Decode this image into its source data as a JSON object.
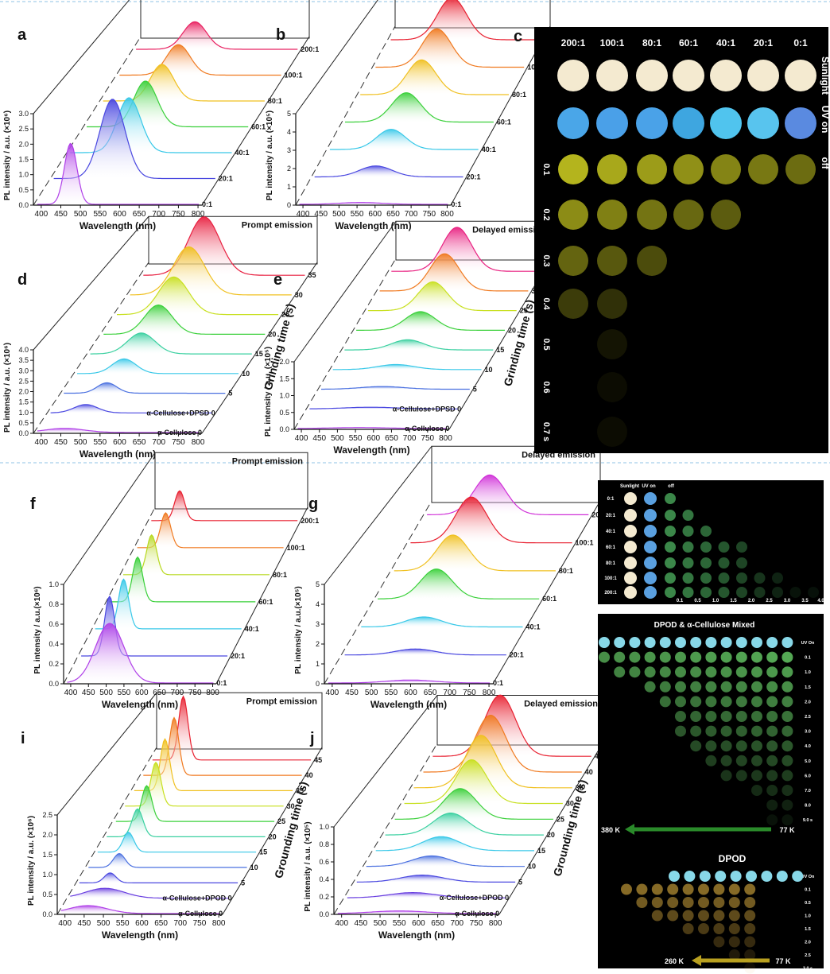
{
  "colors": {
    "series_palette": [
      "#9b30e8",
      "#4b49e0",
      "#38c8e8",
      "#3ad03a",
      "#b8d820",
      "#f0c020",
      "#f07a20",
      "#e82030",
      "#e0208a"
    ],
    "divider": "#8fc3e6",
    "photo_bg": "#000000"
  },
  "panels_3d": [
    {
      "panel": "a",
      "header": "Prompt emission",
      "xlabel": "Wavelength (nm)",
      "ylabel": "PL intensity / a.u. (×10⁶)",
      "xticks": [
        "400",
        "450",
        "500",
        "550",
        "600",
        "650",
        "700",
        "750",
        "800"
      ],
      "yticks": [
        "0.0",
        "0.5",
        "1.0",
        "1.5",
        "2.0",
        "2.5",
        "3.0"
      ],
      "ymax": 3.0,
      "right_label": "",
      "series": [
        {
          "name": "0:1",
          "center": 475,
          "width": 16,
          "peak": 2.0,
          "color": "#b040e8"
        },
        {
          "name": "20:1",
          "center": 540,
          "width": 32,
          "peak": 2.6,
          "color": "#4a48e0"
        },
        {
          "name": "40:1",
          "center": 540,
          "width": 30,
          "peak": 1.8,
          "color": "#38c8e8"
        },
        {
          "name": "60:1",
          "center": 540,
          "width": 30,
          "peak": 1.5,
          "color": "#3ad03a"
        },
        {
          "name": "80:1",
          "center": 540,
          "width": 30,
          "peak": 1.2,
          "color": "#f0c020"
        },
        {
          "name": "100:1",
          "center": 540,
          "width": 30,
          "peak": 1.0,
          "color": "#f07a20"
        },
        {
          "name": "200:1",
          "center": 540,
          "width": 30,
          "peak": 0.9,
          "color": "#e82060"
        }
      ]
    },
    {
      "panel": "b",
      "header": "Delayed emission",
      "xlabel": "Wavelength (nm)",
      "ylabel": "PL intensity / a.u. (×10⁵)",
      "xticks": [
        "400",
        "450",
        "500",
        "550",
        "600",
        "650",
        "700",
        "750",
        "800"
      ],
      "yticks": [
        "0",
        "1",
        "2",
        "3",
        "4",
        "5"
      ],
      "ymax": 5,
      "right_label": "",
      "series": [
        {
          "name": "0:1",
          "center": 560,
          "width": 60,
          "peak": 0.1,
          "color": "#b040e8"
        },
        {
          "name": "20:1",
          "center": 560,
          "width": 45,
          "peak": 0.6,
          "color": "#4a48e0"
        },
        {
          "name": "40:1",
          "center": 560,
          "width": 40,
          "peak": 1.1,
          "color": "#38c8e8"
        },
        {
          "name": "60:1",
          "center": 560,
          "width": 40,
          "peak": 1.6,
          "color": "#3ad03a"
        },
        {
          "name": "80:1",
          "center": 560,
          "width": 40,
          "peak": 1.9,
          "color": "#f0c020"
        },
        {
          "name": "100:1",
          "center": 560,
          "width": 40,
          "peak": 2.1,
          "color": "#f07a20"
        },
        {
          "name": "200:1",
          "center": 560,
          "width": 40,
          "peak": 2.3,
          "color": "#e82030"
        }
      ]
    },
    {
      "panel": "d",
      "header": "Prompt emission",
      "xlabel": "Wavelength (nm)",
      "ylabel": "PL intensity / a.u. (×10⁶)",
      "xticks": [
        "400",
        "450",
        "500",
        "550",
        "600",
        "650",
        "700",
        "750",
        "800"
      ],
      "yticks": [
        "0.0",
        "0.5",
        "1.0",
        "1.5",
        "2.0",
        "2.5",
        "3.0",
        "3.5",
        "4.0"
      ],
      "ymax": 4.0,
      "right_label": "Grinding time (s)",
      "series": [
        {
          "name": "α-Cellulose 0",
          "center": 460,
          "width": 50,
          "peak": 0.2,
          "color": "#b040e8"
        },
        {
          "name": "α-Cellulose+DPSD 0",
          "center": 480,
          "width": 30,
          "peak": 0.4,
          "color": "#4a48e0"
        },
        {
          "name": "5",
          "center": 500,
          "width": 25,
          "peak": 0.5,
          "color": "#4a70e0"
        },
        {
          "name": "10",
          "center": 510,
          "width": 30,
          "peak": 0.7,
          "color": "#38c8e8"
        },
        {
          "name": "15",
          "center": 520,
          "width": 35,
          "peak": 1.0,
          "color": "#3ad0a0"
        },
        {
          "name": "20",
          "center": 530,
          "width": 35,
          "peak": 1.4,
          "color": "#3ad03a"
        },
        {
          "name": "25",
          "center": 535,
          "width": 38,
          "peak": 1.8,
          "color": "#c8e020"
        },
        {
          "name": "30",
          "center": 540,
          "width": 40,
          "peak": 2.3,
          "color": "#f0c020"
        },
        {
          "name": "35",
          "center": 545,
          "width": 40,
          "peak": 2.8,
          "color": "#e82040"
        }
      ]
    },
    {
      "panel": "e",
      "header": "Delayed emission",
      "xlabel": "Wavelength (nm)",
      "ylabel": "PL intensity / a.u. (×10⁵)",
      "xticks": [
        "400",
        "450",
        "500",
        "550",
        "600",
        "650",
        "700",
        "750",
        "800"
      ],
      "yticks": [
        "0.0",
        "0.5",
        "1.0",
        "1.5",
        "2.0"
      ],
      "ymax": 2.0,
      "right_label": "Grinding time (s)",
      "series": [
        {
          "name": "α-Cellulose 0",
          "center": 560,
          "width": 80,
          "peak": 0.03,
          "color": "#b040e8"
        },
        {
          "name": "α-Cellulose+DPSD 0",
          "center": 560,
          "width": 70,
          "peak": 0.05,
          "color": "#4a48e0"
        },
        {
          "name": "5",
          "center": 560,
          "width": 60,
          "peak": 0.08,
          "color": "#4a70e0"
        },
        {
          "name": "10",
          "center": 565,
          "width": 50,
          "peak": 0.15,
          "color": "#38c8e8"
        },
        {
          "name": "15",
          "center": 565,
          "width": 45,
          "peak": 0.3,
          "color": "#3ad0a0"
        },
        {
          "name": "20",
          "center": 568,
          "width": 42,
          "peak": 0.55,
          "color": "#3ad03a"
        },
        {
          "name": "25",
          "center": 570,
          "width": 40,
          "peak": 0.85,
          "color": "#c8e020"
        },
        {
          "name": "30",
          "center": 570,
          "width": 40,
          "peak": 1.1,
          "color": "#f07a20"
        },
        {
          "name": "35",
          "center": 572,
          "width": 40,
          "peak": 1.3,
          "color": "#e82080"
        }
      ]
    },
    {
      "panel": "f",
      "header": "Prompt emission",
      "xlabel": "Wavelength (nm)",
      "ylabel": "PL intensity / a.u.(×10⁶)",
      "xticks": [
        "400",
        "450",
        "500",
        "550",
        "600",
        "650",
        "700",
        "750",
        "800"
      ],
      "yticks": [
        "0.0",
        "0.2",
        "0.4",
        "0.6",
        "0.8",
        "1.0"
      ],
      "ymax": 1.0,
      "right_label": "",
      "series": [
        {
          "name": "0:1",
          "center": 510,
          "width": 40,
          "peak": 0.6,
          "color": "#b040e8"
        },
        {
          "name": "20:1",
          "center": 470,
          "width": 14,
          "peak": 0.6,
          "color": "#4a48e0"
        },
        {
          "name": "40:1",
          "center": 470,
          "width": 14,
          "peak": 0.5,
          "color": "#38c8e8"
        },
        {
          "name": "60:1",
          "center": 470,
          "width": 14,
          "peak": 0.45,
          "color": "#3ad03a"
        },
        {
          "name": "80:1",
          "center": 470,
          "width": 14,
          "peak": 0.4,
          "color": "#b8d820"
        },
        {
          "name": "100:1",
          "center": 470,
          "width": 14,
          "peak": 0.35,
          "color": "#f07a20"
        },
        {
          "name": "200:1",
          "center": 470,
          "width": 14,
          "peak": 0.3,
          "color": "#e82030"
        }
      ]
    },
    {
      "panel": "g",
      "header": "Delayed emission",
      "xlabel": "Wavelength (nm)",
      "ylabel": "PL intensity / a.u.(×10⁵)",
      "xticks": [
        "400",
        "450",
        "500",
        "550",
        "600",
        "650",
        "700",
        "750",
        "800"
      ],
      "yticks": [
        "0",
        "1",
        "2",
        "3",
        "4",
        "5"
      ],
      "ymax": 5,
      "right_label": "",
      "series": [
        {
          "name": "0:1",
          "center": 600,
          "width": 60,
          "peak": 0.15,
          "color": "#b040e8"
        },
        {
          "name": "20:1",
          "center": 570,
          "width": 50,
          "peak": 0.3,
          "color": "#4a48e0"
        },
        {
          "name": "40:1",
          "center": 550,
          "width": 45,
          "peak": 0.5,
          "color": "#38c8e8"
        },
        {
          "name": "60:1",
          "center": 540,
          "width": 40,
          "peak": 1.5,
          "color": "#3ad03a"
        },
        {
          "name": "80:1",
          "center": 540,
          "width": 40,
          "peak": 1.8,
          "color": "#f0c020"
        },
        {
          "name": "100:1",
          "center": 545,
          "width": 40,
          "peak": 2.3,
          "color": "#e82030"
        },
        {
          "name": "200:1",
          "center": 550,
          "width": 40,
          "peak": 2.0,
          "color": "#d030d8"
        }
      ]
    },
    {
      "panel": "i",
      "header": "Prompt emission",
      "xlabel": "Wavelength (nm)",
      "ylabel": "PL intensity / a.u. (×10⁶)",
      "xticks": [
        "400",
        "450",
        "500",
        "550",
        "600",
        "650",
        "700",
        "750",
        "800"
      ],
      "yticks": [
        "0.0",
        "0.5",
        "1.0",
        "1.5",
        "2.0",
        "2.5"
      ],
      "ymax": 2.5,
      "right_label": "Grounding time (s)",
      "series": [
        {
          "name": "α-Cellulose 0",
          "center": 460,
          "width": 50,
          "peak": 0.2,
          "color": "#b040e8"
        },
        {
          "name": "α-Cellulose+DPOD 0",
          "center": 480,
          "width": 50,
          "peak": 0.25,
          "color": "#6a40e0"
        },
        {
          "name": "5",
          "center": 470,
          "width": 15,
          "peak": 0.25,
          "color": "#4a48e0"
        },
        {
          "name": "10",
          "center": 470,
          "width": 15,
          "peak": 0.35,
          "color": "#4a70e0"
        },
        {
          "name": "15",
          "center": 470,
          "width": 14,
          "peak": 0.5,
          "color": "#38c8e8"
        },
        {
          "name": "20",
          "center": 470,
          "width": 14,
          "peak": 0.7,
          "color": "#3ad0a0"
        },
        {
          "name": "25",
          "center": 470,
          "width": 13,
          "peak": 0.9,
          "color": "#3ad03a"
        },
        {
          "name": "30",
          "center": 470,
          "width": 13,
          "peak": 1.1,
          "color": "#c8e020"
        },
        {
          "name": "35",
          "center": 470,
          "width": 12,
          "peak": 1.3,
          "color": "#f0c020"
        },
        {
          "name": "40",
          "center": 470,
          "width": 12,
          "peak": 1.45,
          "color": "#f07a20"
        },
        {
          "name": "45",
          "center": 470,
          "width": 12,
          "peak": 1.6,
          "color": "#e82030"
        }
      ]
    },
    {
      "panel": "j",
      "header": "Delayed emission",
      "xlabel": "Wavelength (nm)",
      "ylabel": "PL intensity / a.u. (×10⁵)",
      "xticks": [
        "400",
        "450",
        "500",
        "550",
        "600",
        "650",
        "700",
        "750",
        "800"
      ],
      "yticks": [
        "0.0",
        "0.2",
        "0.4",
        "0.6",
        "0.8",
        "1.0"
      ],
      "ymax": 1.0,
      "right_label": "Grounding time (s)",
      "series": [
        {
          "name": "α-Cellulose 0",
          "center": 550,
          "width": 70,
          "peak": 0.03,
          "color": "#b040e8"
        },
        {
          "name": "α-Cellulose+DPOD 0",
          "center": 560,
          "width": 60,
          "peak": 0.06,
          "color": "#6a40e0"
        },
        {
          "name": "5",
          "center": 560,
          "width": 55,
          "peak": 0.08,
          "color": "#4a48e0"
        },
        {
          "name": "10",
          "center": 560,
          "width": 50,
          "peak": 0.12,
          "color": "#4a70e0"
        },
        {
          "name": "15",
          "center": 560,
          "width": 48,
          "peak": 0.16,
          "color": "#38c8e8"
        },
        {
          "name": "20",
          "center": 560,
          "width": 45,
          "peak": 0.25,
          "color": "#3ad0a0"
        },
        {
          "name": "25",
          "center": 560,
          "width": 42,
          "peak": 0.35,
          "color": "#3ad03a"
        },
        {
          "name": "30",
          "center": 565,
          "width": 40,
          "peak": 0.5,
          "color": "#c8e020"
        },
        {
          "name": "35",
          "center": 565,
          "width": 40,
          "peak": 0.6,
          "color": "#f0c020"
        },
        {
          "name": "40",
          "center": 565,
          "width": 40,
          "peak": 0.65,
          "color": "#f07a20"
        },
        {
          "name": "45",
          "center": 565,
          "width": 40,
          "peak": 0.7,
          "color": "#e82030"
        }
      ]
    }
  ],
  "photo_c": {
    "panel": "c",
    "col_labels": [
      "200:1",
      "100:1",
      "80:1",
      "60:1",
      "40:1",
      "20:1",
      "0:1"
    ],
    "side_labels": [
      "Sunlight",
      "UV on",
      "off"
    ],
    "time_labels": [
      "0.1",
      "0.2",
      "0.3",
      "0.4",
      "0.5",
      "0.6",
      "0.7 s"
    ],
    "sunlight_color": "#f4ead0",
    "uv_colors": [
      "#4aa6e8",
      "#4aa0e8",
      "#4aa2e8",
      "#3ea6e0",
      "#50c4ee",
      "#58c4ee",
      "#5a8ae0"
    ],
    "afterglow_color": "#c8c820",
    "glow_counts": [
      7,
      5,
      3,
      2,
      1,
      1,
      1
    ]
  },
  "photo_h": {
    "panel": "h",
    "header_labels": [
      "Sunlight",
      "UV on",
      "off"
    ],
    "row_labels": [
      "0:1",
      "20:1",
      "40:1",
      "60:1",
      "80:1",
      "100:1",
      "200:1"
    ],
    "time_labels": [
      "0.1",
      "0.5",
      "1.0",
      "1.5",
      "2.0",
      "2.5",
      "3.0",
      "3.5",
      "4.0 s"
    ],
    "glow_counts": [
      1,
      2,
      3,
      5,
      5,
      7,
      9
    ],
    "sunlight_color": "#f4ead0",
    "uv_color": "#5aa0e0",
    "glow_color": "#5ad070"
  },
  "photo_k": {
    "panel": "k",
    "title_top": "DPOD & α-Cellulose Mixed",
    "top_row_labels": [
      "UV On",
      "0.1",
      "1.0",
      "1.5",
      "2.0",
      "2.5",
      "3.0",
      "4.0",
      "5.0",
      "6.0",
      "7.0",
      "8.0",
      "9.0 s"
    ],
    "top_glow_counts": [
      13,
      12,
      10,
      9,
      8,
      8,
      7,
      6,
      5,
      3,
      2,
      2
    ],
    "arrow_top": {
      "left": "380 K",
      "right": "77 K"
    },
    "title_bottom": "DPOD",
    "bottom_row_labels": [
      "UV On",
      "0.1",
      "0.5",
      "1.0",
      "1.5",
      "2.0",
      "2.5",
      "3.0 s"
    ],
    "bottom_glow_counts": [
      9,
      8,
      7,
      5,
      3,
      2,
      1
    ],
    "arrow_bottom": {
      "left": "260 K",
      "right": "77 K"
    },
    "uv_color": "#88d8e8",
    "glow_color_top": "#70e070",
    "glow_color_bottom": "#e0b040"
  }
}
